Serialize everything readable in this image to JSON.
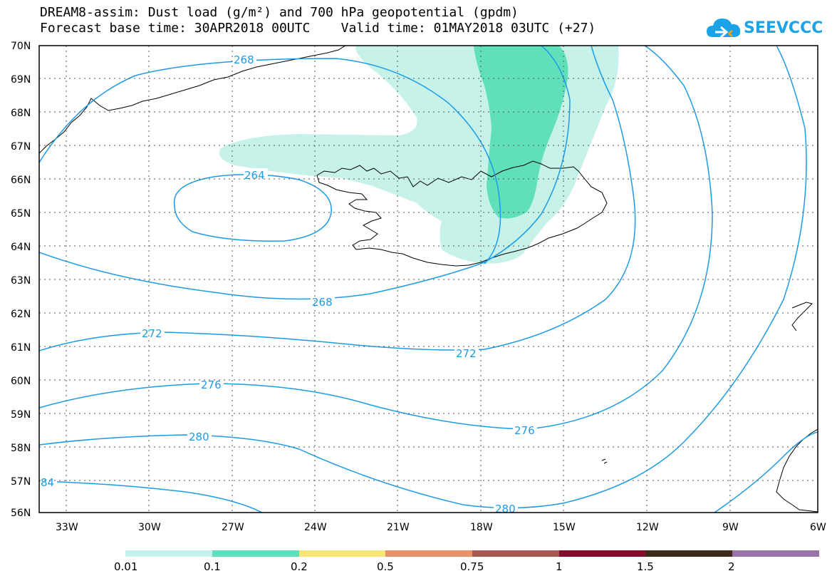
{
  "title_line1": "DREAM8-assim: Dust load (g/m²) and 700 hPa geopotential (gpdm)",
  "title_line2": "Forecast base time: 30APR2018 00UTC    Valid time: 01MAY2018 03UTC (+27)",
  "logo_text": "SEEVCCC",
  "axes": {
    "lat_labels": [
      "70N",
      "69N",
      "68N",
      "67N",
      "66N",
      "65N",
      "64N",
      "63N",
      "62N",
      "61N",
      "60N",
      "59N",
      "58N",
      "57N",
      "56N"
    ],
    "lon_labels": [
      "33W",
      "30W",
      "27W",
      "24W",
      "21W",
      "18W",
      "15W",
      "12W",
      "9W",
      "6W"
    ]
  },
  "contours": [
    {
      "label": "268"
    },
    {
      "label": "264"
    },
    {
      "label": "268"
    },
    {
      "label": "272"
    },
    {
      "label": "272"
    },
    {
      "label": "276"
    },
    {
      "label": "276"
    },
    {
      "label": "280"
    },
    {
      "label": "84"
    },
    {
      "label": "280"
    }
  ],
  "legend": {
    "colors": [
      "#c6f2ea",
      "#5fe0bb",
      "#f7e67a",
      "#e8916a",
      "#a65a4f",
      "#820e2f",
      "#3e2a17",
      "#9a73a8"
    ],
    "labels": [
      "0.01",
      "0.1",
      "0.2",
      "0.5",
      "0.75",
      "1",
      "1.5",
      "2"
    ]
  },
  "colors": {
    "contour": "#1c9be6",
    "dust_light": "#c6f2ea",
    "dust_mid": "#5fe0bb"
  }
}
